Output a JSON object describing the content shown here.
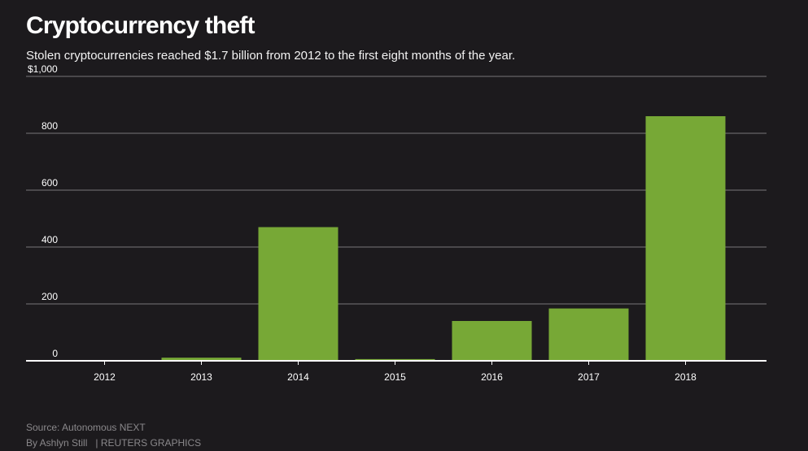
{
  "colors": {
    "background": "#1c1a1d",
    "bar": "#77a836",
    "gridline": "#5a585b",
    "axis": "#ffffff"
  },
  "chart_data": {
    "type": "bar",
    "title": "Cryptocurrency theft",
    "subtitle": "Stolen cryptocurrencies reached $1.7 billion from 2012 to the first eight months of the year.",
    "xlabel": "",
    "ylabel": "",
    "categories": [
      "2012",
      "2013",
      "2014",
      "2015",
      "2016",
      "2017",
      "2018"
    ],
    "values": [
      1,
      11,
      470,
      6,
      140,
      184,
      860
    ],
    "ylim": [
      0,
      1000
    ],
    "yticks": [
      0,
      200,
      400,
      600,
      800,
      1000
    ],
    "ytick_labels": [
      "0",
      "200",
      "400",
      "600",
      "800",
      "$1,000"
    ],
    "grid": true,
    "legend": "none"
  },
  "footer": {
    "source": "Source: Autonomous NEXT",
    "byline": "By Ashlyn Still",
    "credit": "| REUTERS GRAPHICS"
  }
}
